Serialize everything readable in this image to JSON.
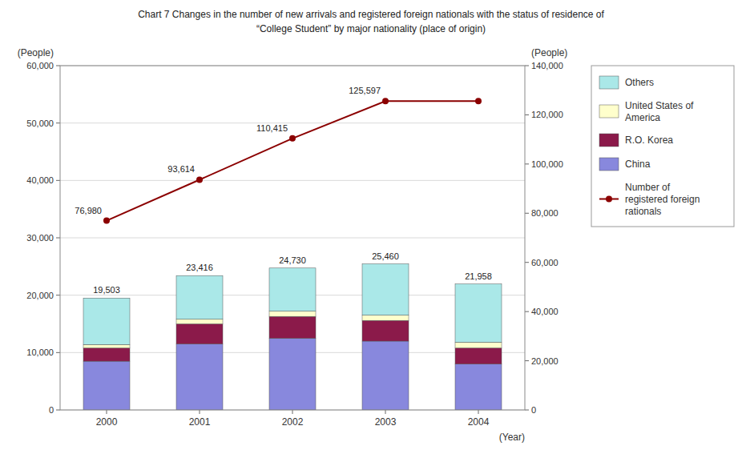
{
  "chart_data": {
    "type": "bar",
    "stacked": true,
    "title": "Chart 7 Changes in the number of new arrivals and registered foreign nationals with the status of residence of",
    "subtitle": "“College Student” by major nationality (place of origin)",
    "x_label": "(Year)",
    "y_label": "(People)",
    "y2_label": "(People)",
    "categories": [
      "2000",
      "2001",
      "2002",
      "2003",
      "2004"
    ],
    "series": [
      {
        "name": "China",
        "color": "#8888dd",
        "values": [
          8500,
          11500,
          12500,
          12000,
          8000
        ]
      },
      {
        "name": "R.O. Korea",
        "color": "#8b1a4a",
        "values": [
          2300,
          3500,
          3800,
          3600,
          2800
        ]
      },
      {
        "name": "United States of\nAmerica",
        "color": "#ffffcc",
        "values": [
          600,
          800,
          900,
          900,
          1000
        ]
      },
      {
        "name": "Others",
        "color": "#aae8e8",
        "values": [
          8103,
          7616,
          7530,
          8960,
          10158
        ]
      },
      {
        "name": "Number of\nregistered foreign\nrationals",
        "type": "line",
        "axis": "y2",
        "color": "#8b0000",
        "marker": "circle",
        "values": [
          76980,
          93614,
          110415,
          125597,
          125597
        ],
        "data_labels": true,
        "value_labels": [
          "76,980",
          "93,614",
          "110,415",
          "125,597",
          null
        ]
      }
    ],
    "stack_totals": {
      "values": [
        19503,
        23416,
        24730,
        25460,
        21958
      ],
      "value_labels": [
        "19,503",
        "23,416",
        "24,730",
        "25,460",
        "21,958"
      ]
    },
    "ylim": [
      0,
      60000
    ],
    "yticks": [
      0,
      {
        "value": 10000,
        "label": "10,000"
      },
      {
        "value": 20000,
        "label": "20,000"
      },
      {
        "value": 30000,
        "label": "30,000"
      },
      {
        "value": 40000,
        "label": "40,000"
      },
      {
        "value": 50000,
        "label": "50,000"
      },
      {
        "value": 60000,
        "label": "60,000"
      }
    ],
    "y2lim": [
      0,
      140000
    ],
    "y2ticks": [
      0,
      {
        "value": 20000,
        "label": "20,000"
      },
      {
        "value": 40000,
        "label": "40,000"
      },
      {
        "value": 60000,
        "label": "60,000"
      },
      {
        "value": 80000,
        "label": "80,000"
      },
      {
        "value": 100000,
        "label": "100,000"
      },
      {
        "value": 120000,
        "label": "120,000"
      },
      {
        "value": 140000,
        "label": "140,000"
      }
    ],
    "grid": true,
    "legend": "right"
  }
}
